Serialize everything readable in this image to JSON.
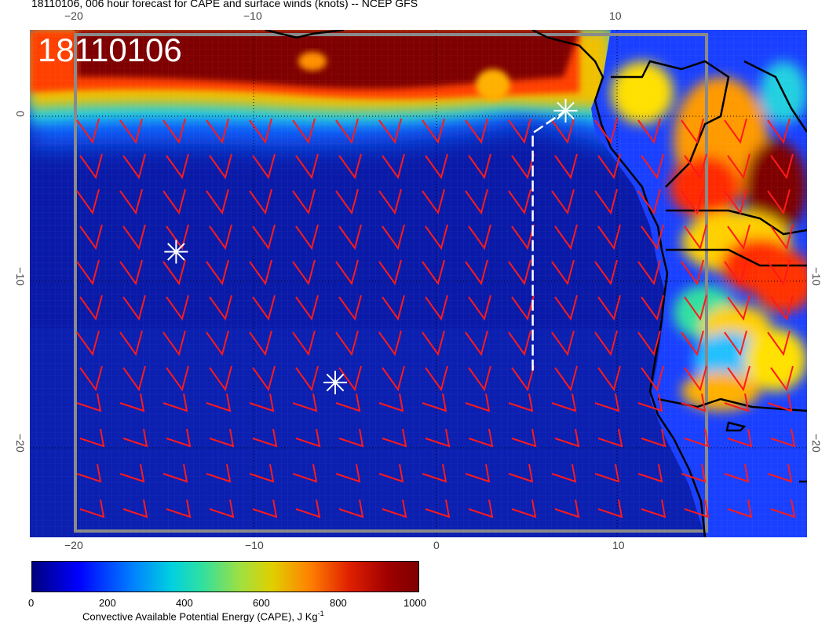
{
  "title": "18110106, 006 hour forecast for CAPE and surface winds (knots) -- NCEP GFS",
  "date_stamp": "18110106",
  "colorbar": {
    "label": "Convective Available Potential Energy (CAPE), J Kg",
    "unit_superscript": "-1",
    "ticks": [
      "0",
      "200",
      "400",
      "600",
      "800",
      "1000"
    ],
    "range": [
      0,
      1000
    ]
  },
  "axes": {
    "longitude_ticks": [
      "−20",
      "−10",
      "0",
      "10"
    ],
    "top_longitude_ticks": [
      "−20",
      "−10",
      "10"
    ],
    "latitude_ticks": [
      "0",
      "−10",
      "−20"
    ],
    "lon_range": [
      -22.5,
      20
    ],
    "lat_range": [
      -24.5,
      5
    ]
  },
  "colors": {
    "wind_barb": "#ff1a1a",
    "coastline": "#000000",
    "marker": "#ffffff",
    "low_cape": "#00007f",
    "high_cape": "#7f0000"
  },
  "markers": [
    {
      "name": "star-marker-north",
      "lon": 6.8,
      "lat": 0.3
    },
    {
      "name": "star-marker-west",
      "lon": -14.5,
      "lat": -7.9
    },
    {
      "name": "star-marker-south",
      "lon": -5.8,
      "lat": -15.5
    }
  ],
  "track": {
    "points": [
      [
        5,
        -14.8
      ],
      [
        5,
        -1
      ],
      [
        6.8,
        0.3
      ]
    ]
  }
}
